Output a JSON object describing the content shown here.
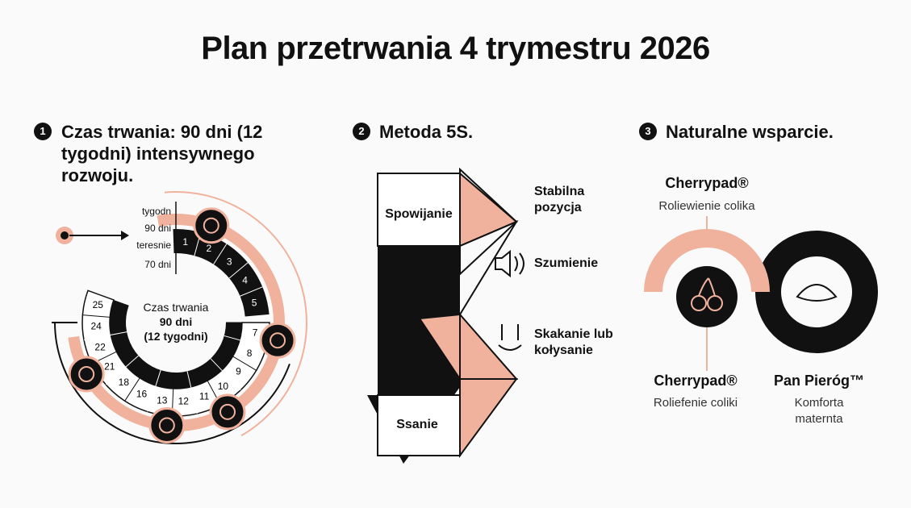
{
  "title": "Plan przetrwania 4 trymestru 2026",
  "sections": [
    {
      "number": "1",
      "heading": "Czas trwania: 90 dni (12 tygodni) intensywnego rozwoju.",
      "row_labels": [
        "tygodn",
        "90 dni",
        "teresnie",
        "70 dni"
      ],
      "center": [
        "Czas trwania",
        "90 dni",
        "(12 tygodni)"
      ],
      "inner_segments": [
        "1",
        "2",
        "3",
        "4",
        "5"
      ],
      "segments": [
        "7",
        "8",
        "9",
        "10",
        "11",
        "12",
        "13",
        "16",
        "18",
        "21",
        "22",
        "24",
        "25"
      ]
    },
    {
      "number": "2",
      "heading": "Metoda 5S.",
      "blocks": [
        "Spowijanie",
        "Ssanie"
      ],
      "items": [
        "Stabilna pozycja",
        "Szumienie",
        "Skakanie lub kołysanie"
      ]
    },
    {
      "number": "3",
      "heading": "Naturalne wsparcie.",
      "brands": [
        {
          "name": "Cherrypad®",
          "desc": "Roliewienie colika"
        },
        {
          "name": "Cherrypad®",
          "desc": "Roliefenie coliki"
        },
        {
          "name": "Pan Pieróg™",
          "desc": "Komforta maternta"
        }
      ]
    }
  ]
}
